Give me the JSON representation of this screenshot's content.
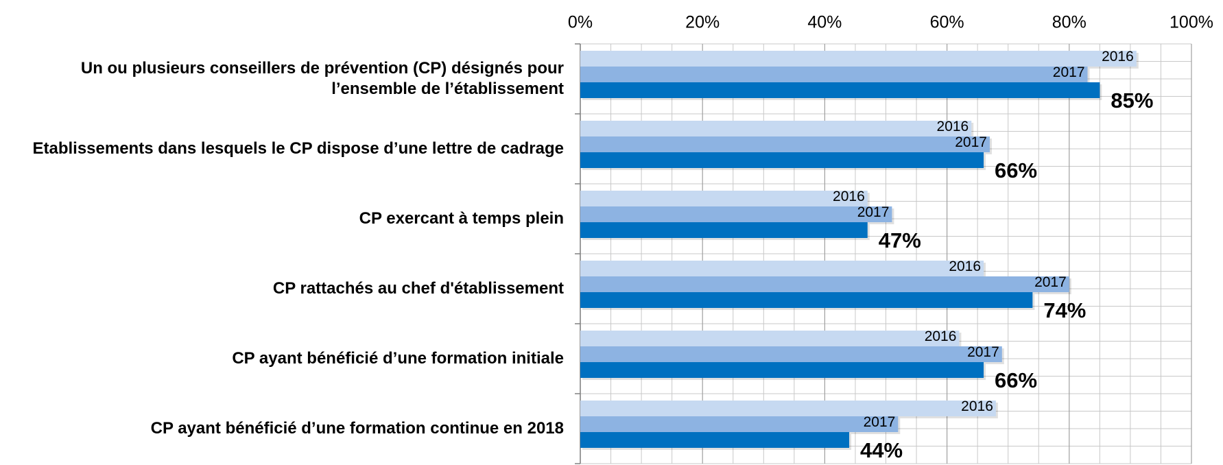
{
  "chart_data": {
    "type": "bar",
    "orientation": "horizontal",
    "categories": [
      "Un ou plusieurs conseillers de prévention (CP) désignés pour l’ensemble de l’établissement",
      "Etablissements dans lesquels le CP dispose d’une lettre de cadrage",
      "CP exercant à temps plein",
      "CP rattachés au chef d'établissement",
      "CP ayant bénéficié d’une formation initiale",
      "CP ayant bénéficié d’une formation continue en 2018"
    ],
    "series": [
      {
        "name": "2016",
        "color": "#c6d9f1",
        "values": [
          91,
          64,
          47,
          66,
          62,
          68
        ]
      },
      {
        "name": "2017",
        "color": "#8db3e2",
        "values": [
          83,
          67,
          51,
          80,
          69,
          52
        ]
      },
      {
        "color": "#0070c0",
        "values": [
          85,
          66,
          47,
          74,
          66,
          44
        ],
        "value_labels": [
          "85%",
          "66%",
          "47%",
          "74%",
          "66%",
          "44%"
        ]
      }
    ],
    "xlim": [
      0,
      100
    ],
    "xticks": [
      {
        "value": 0,
        "label": "0%"
      },
      {
        "value": 20,
        "label": "20%"
      },
      {
        "value": 40,
        "label": "40%"
      },
      {
        "value": 60,
        "label": "60%"
      },
      {
        "value": 80,
        "label": "80%"
      },
      {
        "value": 100,
        "label": "100%"
      }
    ],
    "grid": true
  }
}
